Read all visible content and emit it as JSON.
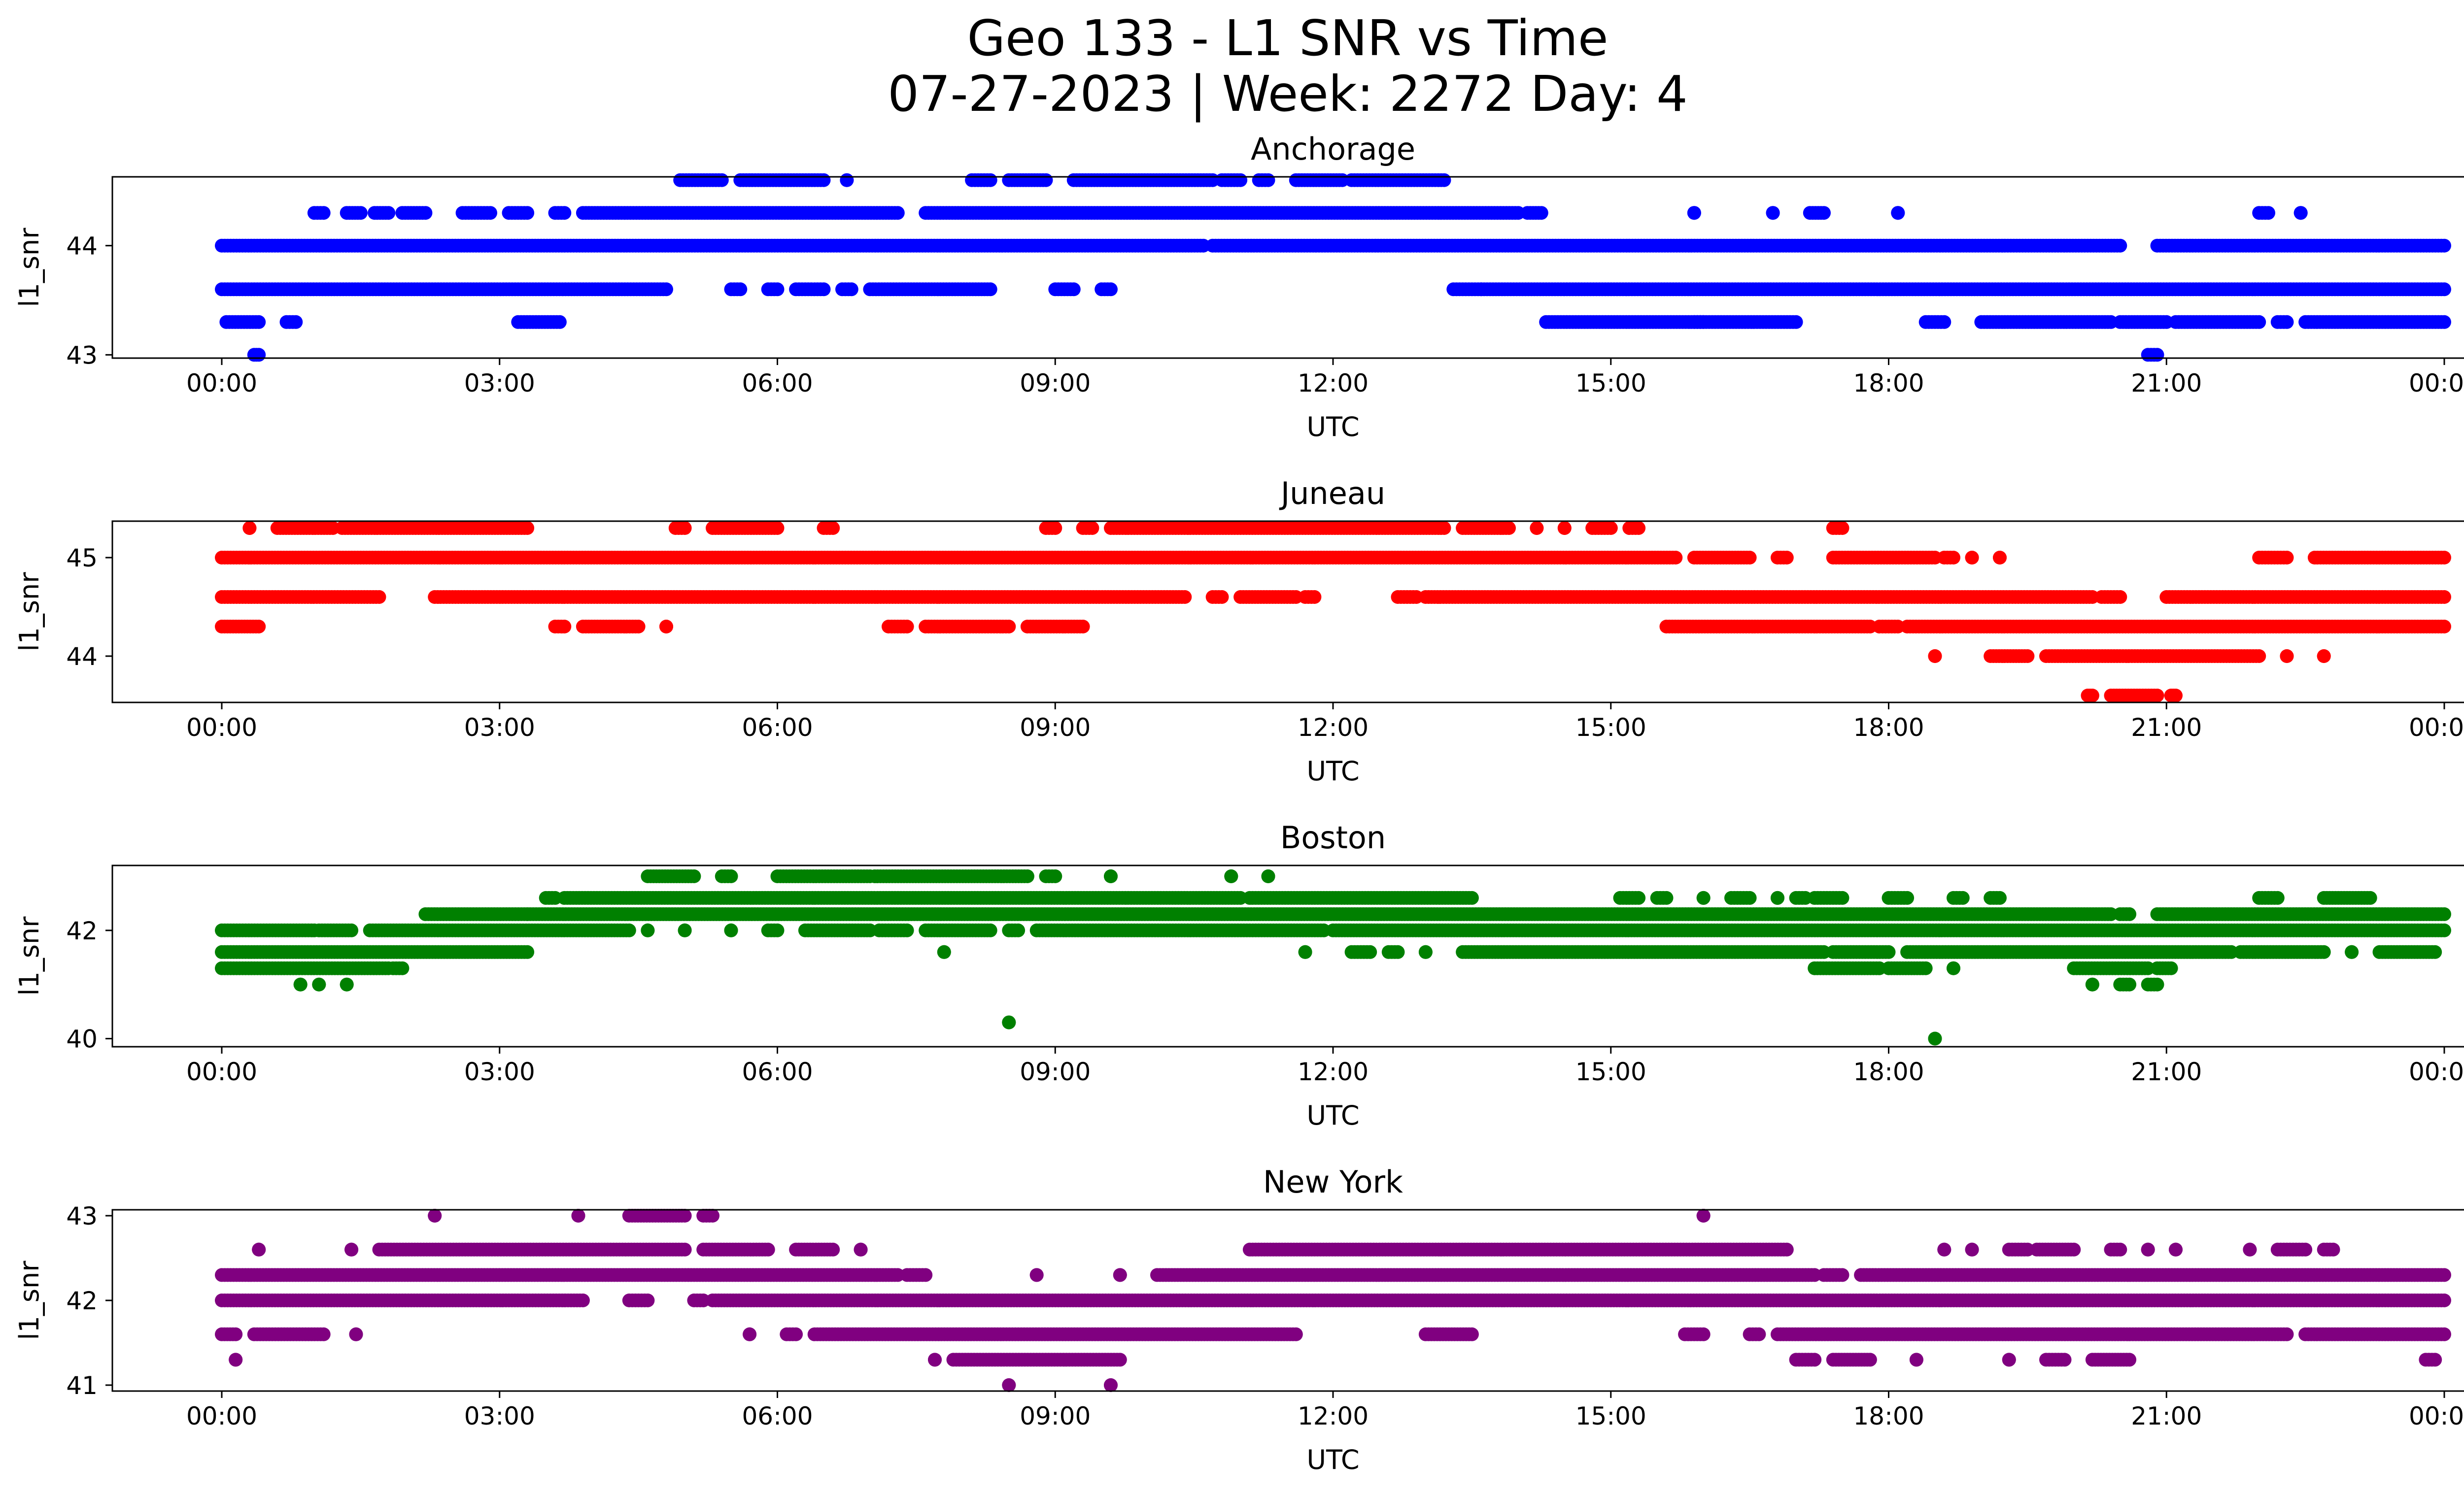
{
  "figure": {
    "title_line1": "Geo 133 - L1 SNR vs Time",
    "title_line2": "07-27-2023 | Week: 2272 Day: 4"
  },
  "chart_data": [
    {
      "type": "scatter",
      "title": "Anchorage",
      "xlabel": "UTC",
      "ylabel": "l1_snr",
      "color": "#0000ff",
      "x_range": [
        "00:00",
        "00:00"
      ],
      "x_ticks": [
        "00:00",
        "03:00",
        "06:00",
        "09:00",
        "12:00",
        "15:00",
        "18:00",
        "21:00",
        "00:00"
      ],
      "ylim": [
        42.97,
        44.63
      ],
      "y_ticks": [
        43,
        44
      ],
      "bands": [
        {
          "snr": 43.3,
          "hours": [
            [
              0.05,
              0.4
            ],
            [
              0.7,
              0.8
            ],
            [
              3.2,
              3.65
            ],
            [
              14.3,
              16.0
            ],
            [
              15.9,
              17.0
            ],
            [
              18.4,
              18.6
            ],
            [
              19.0,
              20.4
            ],
            [
              20.5,
              21.0
            ],
            [
              21.1,
              22.0
            ],
            [
              22.2,
              22.3
            ],
            [
              22.5,
              24.0
            ]
          ]
        },
        {
          "snr": 43.0,
          "hours": [
            [
              0.35,
              0.4
            ],
            [
              20.8,
              20.9
            ]
          ]
        },
        {
          "snr": 43.6,
          "hours": [
            [
              0.0,
              4.8
            ],
            [
              5.5,
              5.6
            ],
            [
              5.9,
              6.0
            ],
            [
              6.2,
              6.5
            ],
            [
              6.7,
              6.8
            ],
            [
              7.0,
              8.3
            ],
            [
              9.0,
              9.2
            ],
            [
              9.5,
              9.6
            ],
            [
              13.3,
              13.6
            ],
            [
              13.6,
              24.0
            ]
          ]
        },
        {
          "snr": 44.0,
          "hours": [
            [
              0.0,
              10.6
            ],
            [
              10.7,
              20.5
            ],
            [
              20.9,
              24.0
            ]
          ]
        },
        {
          "snr": 44.3,
          "hours": [
            [
              1.0,
              1.1
            ],
            [
              1.35,
              1.5
            ],
            [
              1.65,
              1.8
            ],
            [
              1.95,
              2.2
            ],
            [
              2.6,
              2.9
            ],
            [
              3.1,
              3.3
            ],
            [
              3.6,
              3.7
            ],
            [
              3.9,
              7.3
            ],
            [
              7.6,
              14.0
            ],
            [
              14.1,
              14.25
            ],
            [
              15.9,
              15.9
            ],
            [
              16.75,
              16.75
            ],
            [
              17.15,
              17.3
            ],
            [
              18.1,
              18.1
            ],
            [
              22.0,
              22.1
            ],
            [
              22.45,
              22.45
            ]
          ]
        },
        {
          "snr": 44.6,
          "hours": [
            [
              4.95,
              5.4
            ],
            [
              5.6,
              6.5
            ],
            [
              6.75,
              6.75
            ],
            [
              8.1,
              8.3
            ],
            [
              8.5,
              8.9
            ],
            [
              9.2,
              10.7
            ],
            [
              10.8,
              11.0
            ],
            [
              11.2,
              11.3
            ],
            [
              11.6,
              12.1
            ],
            [
              12.2,
              13.2
            ]
          ]
        }
      ]
    },
    {
      "type": "scatter",
      "title": "Juneau",
      "xlabel": "UTC",
      "ylabel": "l1_snr",
      "color": "#ff0000",
      "x_range": [
        "00:00",
        "00:00"
      ],
      "x_ticks": [
        "00:00",
        "03:00",
        "06:00",
        "09:00",
        "12:00",
        "15:00",
        "18:00",
        "21:00",
        "00:00"
      ],
      "ylim": [
        43.53,
        45.37
      ],
      "y_ticks": [
        44,
        45
      ],
      "bands": [
        {
          "snr": 43.6,
          "hours": [
            [
              20.15,
              20.2
            ],
            [
              20.4,
              20.9
            ],
            [
              21.05,
              21.1
            ]
          ]
        },
        {
          "snr": 44.0,
          "hours": [
            [
              18.5,
              18.5
            ],
            [
              19.1,
              19.5
            ],
            [
              19.7,
              22.0
            ],
            [
              22.3,
              22.3
            ],
            [
              22.7,
              22.7
            ]
          ]
        },
        {
          "snr": 44.3,
          "hours": [
            [
              0.0,
              0.4
            ],
            [
              3.6,
              3.7
            ],
            [
              3.9,
              4.5
            ],
            [
              4.8,
              4.8
            ],
            [
              7.2,
              7.4
            ],
            [
              7.6,
              8.5
            ],
            [
              8.7,
              9.3
            ],
            [
              15.6,
              17.8
            ],
            [
              17.9,
              18.1
            ],
            [
              18.2,
              24.0
            ]
          ]
        },
        {
          "snr": 44.6,
          "hours": [
            [
              0.0,
              1.7
            ],
            [
              2.3,
              10.4
            ],
            [
              10.7,
              10.8
            ],
            [
              11.0,
              11.6
            ],
            [
              11.7,
              11.8
            ],
            [
              12.7,
              12.9
            ],
            [
              13.0,
              20.2
            ],
            [
              20.3,
              20.5
            ],
            [
              21.0,
              24.0
            ]
          ]
        },
        {
          "snr": 45.0,
          "hours": [
            [
              0.0,
              15.7
            ],
            [
              15.9,
              16.5
            ],
            [
              16.8,
              16.9
            ],
            [
              17.4,
              18.5
            ],
            [
              18.6,
              18.7
            ],
            [
              18.9,
              18.9
            ],
            [
              19.2,
              19.2
            ],
            [
              22.0,
              22.3
            ],
            [
              22.6,
              24.0
            ]
          ]
        },
        {
          "snr": 45.3,
          "hours": [
            [
              0.3,
              0.3
            ],
            [
              0.6,
              1.2
            ],
            [
              1.3,
              3.3
            ],
            [
              4.9,
              5.0
            ],
            [
              5.3,
              6.0
            ],
            [
              6.5,
              6.6
            ],
            [
              8.9,
              9.0
            ],
            [
              9.3,
              9.4
            ],
            [
              9.6,
              13.2
            ],
            [
              13.4,
              13.9
            ],
            [
              14.2,
              14.2
            ],
            [
              14.5,
              14.5
            ],
            [
              14.8,
              15.0
            ],
            [
              15.2,
              15.3
            ],
            [
              17.4,
              17.5
            ]
          ]
        }
      ]
    },
    {
      "type": "scatter",
      "title": "Boston",
      "xlabel": "UTC",
      "ylabel": "l1_snr",
      "color": "#008000",
      "x_range": [
        "00:00",
        "00:00"
      ],
      "x_ticks": [
        "00:00",
        "03:00",
        "06:00",
        "09:00",
        "12:00",
        "15:00",
        "18:00",
        "21:00",
        "00:00"
      ],
      "ylim": [
        39.85,
        43.2
      ],
      "y_ticks": [
        40,
        42
      ],
      "bands": [
        {
          "snr": 40.0,
          "hours": [
            [
              18.5,
              18.5
            ]
          ]
        },
        {
          "snr": 40.3,
          "hours": [
            [
              8.5,
              8.5
            ]
          ]
        },
        {
          "snr": 41.0,
          "hours": [
            [
              0.85,
              0.85
            ],
            [
              1.05,
              1.05
            ],
            [
              1.35,
              1.35
            ],
            [
              20.2,
              20.2
            ],
            [
              20.5,
              20.6
            ],
            [
              20.8,
              20.9
            ]
          ]
        },
        {
          "snr": 41.3,
          "hours": [
            [
              0.0,
              1.8
            ],
            [
              1.85,
              1.95
            ],
            [
              17.2,
              17.9
            ],
            [
              18.0,
              18.4
            ],
            [
              18.7,
              18.7
            ],
            [
              20.0,
              20.8
            ],
            [
              20.9,
              21.05
            ]
          ]
        },
        {
          "snr": 41.6,
          "hours": [
            [
              0.0,
              3.3
            ],
            [
              7.8,
              7.8
            ],
            [
              11.7,
              11.7
            ],
            [
              12.2,
              12.4
            ],
            [
              12.6,
              12.7
            ],
            [
              13.0,
              13.0
            ],
            [
              13.4,
              17.3
            ],
            [
              17.4,
              18.0
            ],
            [
              18.2,
              21.7
            ],
            [
              21.8,
              22.7
            ],
            [
              23.0,
              23.0
            ],
            [
              23.3,
              23.9
            ]
          ]
        },
        {
          "snr": 42.0,
          "hours": [
            [
              0.0,
              1.0
            ],
            [
              1.05,
              1.4
            ],
            [
              1.6,
              4.4
            ],
            [
              4.6,
              4.6
            ],
            [
              5.0,
              5.0
            ],
            [
              5.5,
              5.5
            ],
            [
              5.9,
              6.0
            ],
            [
              6.3,
              7.0
            ],
            [
              7.1,
              7.4
            ],
            [
              7.6,
              8.3
            ],
            [
              8.5,
              8.6
            ],
            [
              8.8,
              11.9
            ],
            [
              12.0,
              24.0
            ]
          ]
        },
        {
          "snr": 42.3,
          "hours": [
            [
              2.2,
              3.3
            ],
            [
              3.3,
              20.4
            ],
            [
              20.5,
              20.6
            ],
            [
              20.9,
              24.0
            ]
          ]
        },
        {
          "snr": 42.6,
          "hours": [
            [
              3.5,
              3.6
            ],
            [
              3.7,
              11.0
            ],
            [
              11.1,
              13.5
            ],
            [
              15.1,
              15.3
            ],
            [
              15.5,
              15.6
            ],
            [
              16.0,
              16.0
            ],
            [
              16.3,
              16.5
            ],
            [
              16.8,
              16.8
            ],
            [
              17.0,
              17.1
            ],
            [
              17.2,
              17.5
            ],
            [
              18.0,
              18.2
            ],
            [
              18.7,
              18.8
            ],
            [
              19.1,
              19.2
            ],
            [
              22.0,
              22.2
            ],
            [
              22.7,
              23.2
            ]
          ]
        },
        {
          "snr": 43.0,
          "hours": [
            [
              4.6,
              5.1
            ],
            [
              5.4,
              5.5
            ],
            [
              6.0,
              7.0
            ],
            [
              7.05,
              8.7
            ],
            [
              8.9,
              9.0
            ],
            [
              9.6,
              9.6
            ],
            [
              10.9,
              10.9
            ],
            [
              11.3,
              11.3
            ]
          ]
        }
      ]
    },
    {
      "type": "scatter",
      "title": "New York",
      "xlabel": "UTC",
      "ylabel": "l1_snr",
      "color": "#800080",
      "x_range": [
        "00:00",
        "00:00"
      ],
      "x_ticks": [
        "00:00",
        "03:00",
        "06:00",
        "09:00",
        "12:00",
        "15:00",
        "18:00",
        "21:00",
        "00:00"
      ],
      "ylim": [
        40.93,
        43.07
      ],
      "y_ticks": [
        41,
        42,
        43
      ],
      "bands": [
        {
          "snr": 41.0,
          "hours": [
            [
              8.5,
              8.5
            ],
            [
              9.6,
              9.6
            ]
          ]
        },
        {
          "snr": 41.3,
          "hours": [
            [
              0.15,
              0.15
            ],
            [
              7.7,
              7.7
            ],
            [
              7.9,
              9.7
            ],
            [
              17.0,
              17.2
            ],
            [
              17.4,
              17.8
            ],
            [
              18.3,
              18.3
            ],
            [
              19.3,
              19.3
            ],
            [
              19.7,
              19.9
            ],
            [
              20.2,
              20.6
            ],
            [
              23.8,
              23.9
            ]
          ]
        },
        {
          "snr": 41.6,
          "hours": [
            [
              0.0,
              0.15
            ],
            [
              0.35,
              1.1
            ],
            [
              1.45,
              1.45
            ],
            [
              5.7,
              5.7
            ],
            [
              6.1,
              6.2
            ],
            [
              6.4,
              11.6
            ],
            [
              13.0,
              13.5
            ],
            [
              15.8,
              16.0
            ],
            [
              16.5,
              16.6
            ],
            [
              16.8,
              22.3
            ],
            [
              22.5,
              24.0
            ]
          ]
        },
        {
          "snr": 42.0,
          "hours": [
            [
              0.0,
              3.9
            ],
            [
              4.4,
              4.6
            ],
            [
              5.1,
              5.2
            ],
            [
              5.3,
              24.0
            ]
          ]
        },
        {
          "snr": 42.3,
          "hours": [
            [
              0.0,
              7.3
            ],
            [
              7.4,
              7.6
            ],
            [
              8.8,
              8.8
            ],
            [
              9.7,
              9.7
            ],
            [
              10.1,
              17.2
            ],
            [
              17.3,
              17.5
            ],
            [
              17.7,
              24.0
            ]
          ]
        },
        {
          "snr": 42.6,
          "hours": [
            [
              0.4,
              0.4
            ],
            [
              1.4,
              1.4
            ],
            [
              1.7,
              5.0
            ],
            [
              5.2,
              5.9
            ],
            [
              6.2,
              6.6
            ],
            [
              6.9,
              6.9
            ],
            [
              11.1,
              16.9
            ],
            [
              18.6,
              18.6
            ],
            [
              18.9,
              18.9
            ],
            [
              19.3,
              19.5
            ],
            [
              19.6,
              20.0
            ],
            [
              20.4,
              20.5
            ],
            [
              20.8,
              20.8
            ],
            [
              21.1,
              21.1
            ],
            [
              21.9,
              21.9
            ],
            [
              22.2,
              22.5
            ],
            [
              22.7,
              22.8
            ]
          ]
        },
        {
          "snr": 43.0,
          "hours": [
            [
              2.3,
              2.3
            ],
            [
              3.85,
              3.85
            ],
            [
              4.4,
              5.0
            ],
            [
              5.2,
              5.3
            ],
            [
              16.0,
              16.0
            ]
          ]
        }
      ]
    }
  ]
}
